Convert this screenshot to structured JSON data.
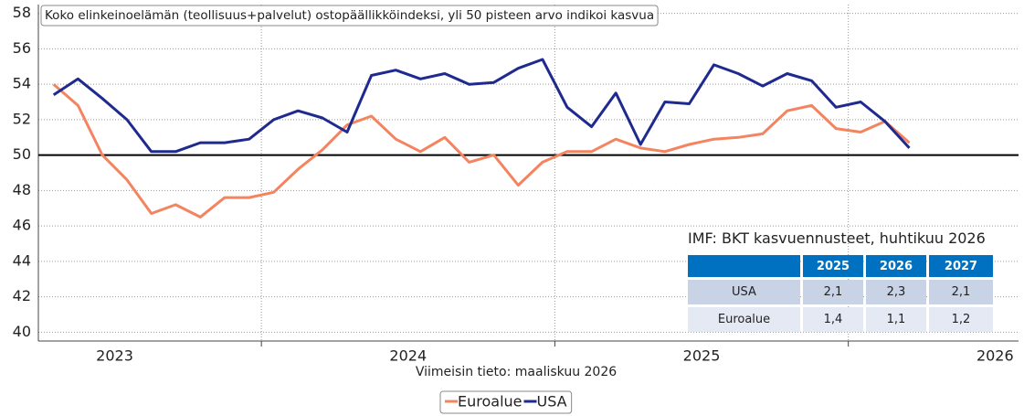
{
  "chart_data": {
    "type": "line",
    "title": "Koko elinkeinoelämän (teollisuus+palvelut) ostopäällikköindeksi, yli 50 pisteen arvo indikoi kasvua",
    "x_label": "Viimeisin tieto: maaliskuu 2026",
    "x": [
      2023.292,
      2023.375,
      2023.458,
      2023.542,
      2023.625,
      2023.708,
      2023.792,
      2023.875,
      2023.958,
      2024.042,
      2024.125,
      2024.208,
      2024.292,
      2024.375,
      2024.458,
      2024.542,
      2024.625,
      2024.708,
      2024.792,
      2024.875,
      2024.958,
      2025.042,
      2025.125,
      2025.208,
      2025.292,
      2025.375,
      2025.458,
      2025.542,
      2025.625,
      2025.708,
      2025.792,
      2025.875,
      2025.958,
      2026.042,
      2026.125,
      2026.208
    ],
    "series": [
      {
        "name": "Euroalue",
        "color": "#f4845f",
        "values": [
          54.0,
          52.8,
          50.0,
          48.6,
          46.7,
          47.2,
          46.5,
          47.6,
          47.6,
          47.9,
          49.2,
          50.3,
          51.7,
          52.2,
          50.9,
          50.2,
          51.0,
          49.6,
          50.0,
          48.3,
          49.6,
          50.2,
          50.2,
          50.9,
          50.4,
          50.2,
          50.6,
          50.9,
          51.0,
          51.2,
          52.5,
          52.8,
          51.5,
          51.3,
          51.9,
          50.7
        ]
      },
      {
        "name": "USA",
        "color": "#1f2a8f",
        "values": [
          53.4,
          54.3,
          53.2,
          52.0,
          50.2,
          50.2,
          50.7,
          50.7,
          50.9,
          52.0,
          52.5,
          52.1,
          51.3,
          54.5,
          54.8,
          54.3,
          54.6,
          54.0,
          54.1,
          54.9,
          55.4,
          52.7,
          51.6,
          53.5,
          50.6,
          53.0,
          52.9,
          55.1,
          54.6,
          53.9,
          54.6,
          54.2,
          52.7,
          53.0,
          51.9,
          50.4
        ]
      }
    ],
    "xlim": [
      2023.24,
      2026.58
    ],
    "xticks": [
      2023,
      2024,
      2025,
      2026
    ],
    "ylim": [
      39.5,
      58.5
    ],
    "yticks": [
      40,
      42,
      44,
      46,
      48,
      50,
      52,
      54,
      56,
      58
    ],
    "reference_line": 50,
    "grid": true,
    "legend": "bottom"
  },
  "table": {
    "title": "IMF: BKT kasvuennusteet, huhtikuu 2026",
    "columns": [
      "2025",
      "2026",
      "2027"
    ],
    "rows": [
      [
        "USA",
        "2,1",
        "2,3",
        "2,1"
      ],
      [
        "Euroalue",
        "1,4",
        "1,1",
        "1,2"
      ]
    ]
  }
}
